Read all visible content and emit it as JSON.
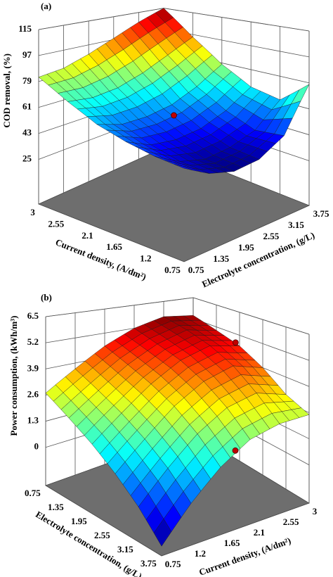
{
  "chart_data": [
    {
      "type": "surface3d",
      "panel_label": "(a)",
      "zlabel": "COD removal, (%)",
      "xlabel": "Current density, (A/dm²)",
      "ylabel": "Electrolyte concentration, (g/L)",
      "xlim": [
        3,
        0.75
      ],
      "xticks": [
        3,
        2.55,
        2.1,
        1.65,
        1.2,
        0.75
      ],
      "ylim": [
        0.75,
        3.75
      ],
      "yticks": [
        0.75,
        1.35,
        1.95,
        2.55,
        3.15,
        3.75
      ],
      "zlim": [
        -6,
        115
      ],
      "zticks": [
        25,
        43,
        61,
        79,
        97,
        115
      ],
      "x": [
        3,
        2.55,
        2.1,
        1.65,
        1.2,
        0.75
      ],
      "y": [
        0.75,
        1.35,
        1.95,
        2.55,
        3.15,
        3.75
      ],
      "z": [
        [
          82,
          84,
          90,
          98,
          107,
          115
        ],
        [
          70,
          68,
          70,
          76,
          85,
          95
        ],
        [
          60,
          55,
          55,
          58,
          66,
          78
        ],
        [
          54,
          47,
          45,
          47,
          54,
          66
        ],
        [
          50,
          42,
          38,
          40,
          46,
          62
        ],
        [
          48,
          40,
          36,
          38,
          48,
          78
        ]
      ],
      "points": {
        "color": "#c00000",
        "x": [
          1.875
        ],
        "y": [
          2.25
        ],
        "z": [
          56
        ]
      },
      "floor_color": "#6e6e6e"
    },
    {
      "type": "surface3d",
      "panel_label": "(b)",
      "zlabel": "Power consumption, (kWh/m³)",
      "xlabel": "Electrolyte concentration, (g/L)",
      "ylabel": "Current density, (A/dm²)",
      "xlim": [
        0.75,
        3.75
      ],
      "xticks": [
        0.75,
        1.35,
        1.95,
        2.55,
        3.15,
        3.75
      ],
      "ylim": [
        0.75,
        3
      ],
      "yticks": [
        0.75,
        1.2,
        1.65,
        2.1,
        2.55,
        3
      ],
      "zlim": [
        -1.9,
        6.5
      ],
      "zticks": [
        0,
        1.3,
        2.6,
        3.9,
        5.2,
        6.5
      ],
      "x": [
        0.75,
        1.35,
        1.95,
        2.55,
        3.15,
        3.75
      ],
      "y": [
        0.75,
        1.2,
        1.65,
        2.1,
        2.55,
        3
      ],
      "z": [
        [
          2.7,
          3.6,
          4.5,
          5.2,
          5.6,
          5.4
        ],
        [
          2.0,
          3.0,
          4.0,
          4.8,
          5.3,
          5.0
        ],
        [
          1.3,
          2.4,
          3.5,
          4.4,
          4.9,
          4.6
        ],
        [
          0.5,
          1.7,
          2.9,
          3.8,
          4.3,
          3.9
        ],
        [
          -0.4,
          0.9,
          2.1,
          3.0,
          3.4,
          3.0
        ],
        [
          -1.5,
          -0.1,
          1.1,
          2.0,
          2.4,
          2.5
        ]
      ],
      "points": {
        "color": "#c00000",
        "x": [
          2.22,
          3.75
        ],
        "y": [
          2.78,
          1.875
        ],
        "z": [
          5.14,
          1.67
        ]
      },
      "floor_color": "#6e6e6e"
    }
  ]
}
